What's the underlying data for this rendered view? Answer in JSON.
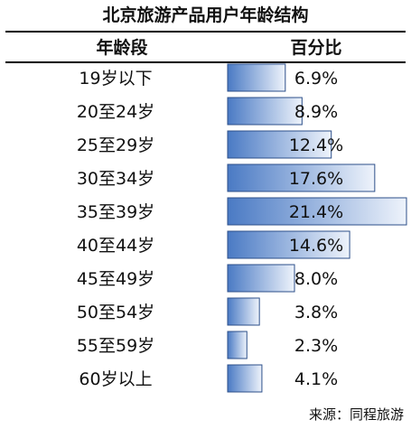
{
  "title": "北京旅游产品用户年龄结构",
  "header": {
    "age": "年龄段",
    "percent": "百分比"
  },
  "source": "来源：同程旅游",
  "chart_data": {
    "type": "bar",
    "orientation": "horizontal",
    "title": "北京旅游产品用户年龄结构",
    "categories": [
      "19岁以下",
      "20至24岁",
      "25至29岁",
      "30至34岁",
      "35至39岁",
      "40至44岁",
      "45至49岁",
      "50至54岁",
      "55至59岁",
      "60岁以上"
    ],
    "values": [
      6.9,
      8.9,
      12.4,
      17.6,
      21.4,
      14.6,
      8.0,
      3.8,
      2.3,
      4.1
    ],
    "labels": [
      "6.9%",
      "8.9%",
      "12.4%",
      "17.6%",
      "21.4%",
      "14.6%",
      "8.0%",
      "3.8%",
      "2.3%",
      "4.1%"
    ],
    "xlim": [
      0,
      21.4
    ],
    "grid": false,
    "bar_color_dark": "#4a7ac4",
    "bar_color_light": "#eef3fb",
    "bar_border": "#2c4f8a"
  }
}
